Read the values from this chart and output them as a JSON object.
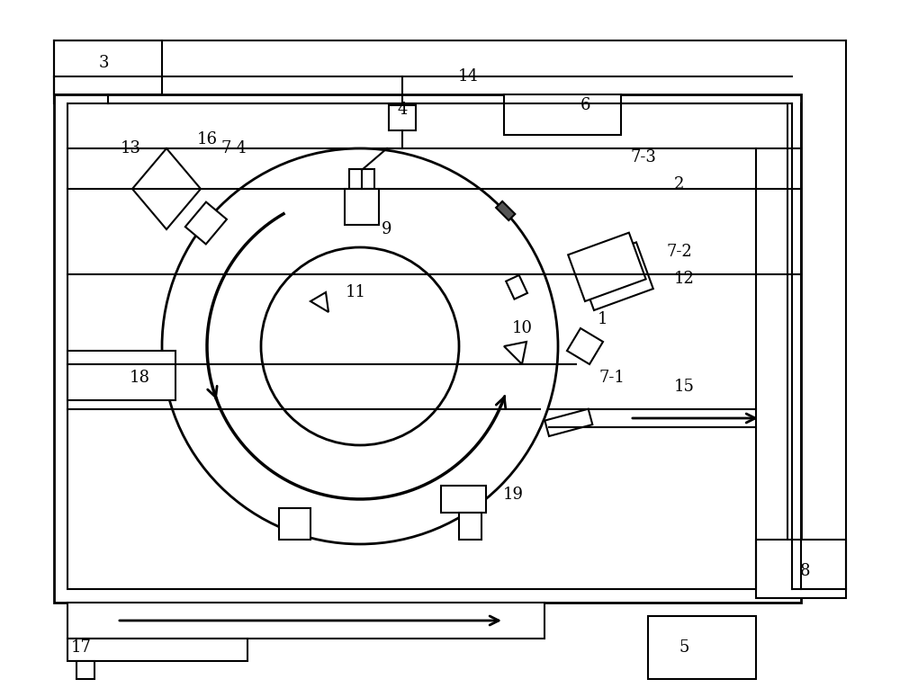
{
  "bg_color": "#ffffff",
  "line_color": "#000000",
  "line_width": 1.5,
  "fig_width": 10.0,
  "fig_height": 7.65
}
